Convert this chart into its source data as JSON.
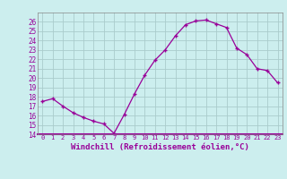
{
  "x": [
    0,
    1,
    2,
    3,
    4,
    5,
    6,
    7,
    8,
    9,
    10,
    11,
    12,
    13,
    14,
    15,
    16,
    17,
    18,
    19,
    20,
    21,
    22,
    23
  ],
  "y": [
    17.5,
    17.8,
    17.0,
    16.3,
    15.8,
    15.4,
    15.1,
    14.1,
    16.1,
    18.3,
    20.3,
    21.9,
    23.0,
    24.5,
    25.7,
    26.1,
    26.2,
    25.8,
    25.4,
    23.2,
    22.5,
    21.0,
    20.8,
    19.5
  ],
  "line_color": "#990099",
  "marker": "+",
  "bg_color": "#cceeee",
  "label_bar_color": "#cceeee",
  "grid_color": "#aacccc",
  "text_color": "#990099",
  "xlabel": "Windchill (Refroidissement éolien,°C)",
  "ylim": [
    14,
    27
  ],
  "xlim": [
    -0.5,
    23.5
  ],
  "yticks": [
    14,
    15,
    16,
    17,
    18,
    19,
    20,
    21,
    22,
    23,
    24,
    25,
    26
  ],
  "xticks": [
    0,
    1,
    2,
    3,
    4,
    5,
    6,
    7,
    8,
    9,
    10,
    11,
    12,
    13,
    14,
    15,
    16,
    17,
    18,
    19,
    20,
    21,
    22,
    23
  ]
}
